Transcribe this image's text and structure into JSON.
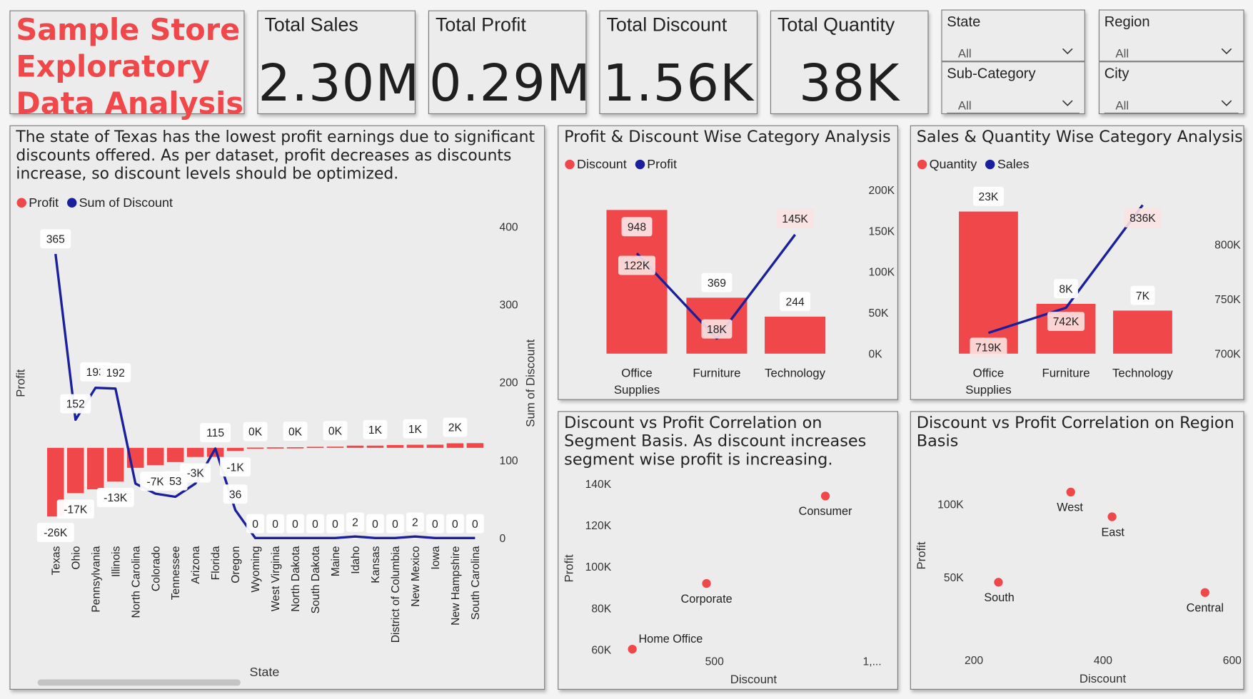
{
  "title": {
    "line1": "Sample Store",
    "line2": "Exploratory",
    "line3": "Data Analysis"
  },
  "kpis": [
    {
      "label": "Total Sales",
      "value": "2.30M"
    },
    {
      "label": "Total Profit",
      "value": "0.29M"
    },
    {
      "label": "Total Discount",
      "value": "1.56K"
    },
    {
      "label": "Total Quantity",
      "value": "38K"
    }
  ],
  "slicers": [
    {
      "label": "State",
      "value": "All"
    },
    {
      "label": "Region",
      "value": "All"
    },
    {
      "label": "Sub-Category",
      "value": "All"
    },
    {
      "label": "City",
      "value": "All"
    }
  ],
  "colors": {
    "red": "#f0474a",
    "blue": "#1a1f9c",
    "title_red": "#f0474a"
  },
  "chart_data": [
    {
      "type": "bar",
      "title": "The state of Texas has the lowest profit earnings due to significant discounts offered. As per dataset, profit decreases as discounts increase, so discount levels should be optimized.",
      "xlabel": "State",
      "ylabel": "Profit",
      "y2label": "Sum of Discount",
      "y2ticks": [
        "400",
        "300",
        "200",
        "100",
        "0"
      ],
      "y2lim": [
        0,
        400
      ],
      "legend": [
        "Profit",
        "Sum of Discount"
      ],
      "categories": [
        "Texas",
        "Ohio",
        "Pennsylvania",
        "Illinois",
        "North Carolina",
        "Colorado",
        "Tennessee",
        "Arizona",
        "Florida",
        "Oregon",
        "Wyoming",
        "West Virginia",
        "North Dakota",
        "South Dakota",
        "Maine",
        "Idaho",
        "Kansas",
        "District of Columbia",
        "New Mexico",
        "Iowa",
        "New Hampshire",
        "South Carolina"
      ],
      "series": [
        {
          "name": "Profit",
          "type": "bar",
          "values": [
            -25729,
            -16971,
            -15560,
            -12608,
            -7491,
            -6528,
            -5342,
            -3428,
            -3399,
            -1191,
            100,
            186,
            230,
            395,
            454,
            827,
            836,
            1060,
            1157,
            1184,
            1707,
            1770
          ],
          "labels": [
            "-26K",
            "-17K",
            "",
            "-13K",
            "",
            "-7K",
            "",
            "-3K",
            "",
            "-1K",
            "0K",
            "",
            "0K",
            "",
            "0K",
            "",
            "1K",
            "",
            "1K",
            "",
            "2K",
            ""
          ]
        },
        {
          "name": "Sum of Discount",
          "type": "line",
          "values": [
            365,
            152,
            193,
            192,
            70,
            57,
            53,
            70,
            115,
            36,
            0,
            0,
            0,
            0,
            0,
            2,
            0,
            0,
            2,
            0,
            0,
            0
          ],
          "labels": [
            "365",
            "152",
            "193",
            "192",
            "",
            "",
            "53",
            "",
            "115",
            "36",
            "0",
            "0",
            "0",
            "0",
            "0",
            "2",
            "0",
            "0",
            "2",
            "0",
            "0",
            "0"
          ]
        }
      ]
    },
    {
      "type": "bar",
      "title": "Profit & Discount Wise Category Analysis",
      "legend": [
        "Discount",
        "Profit"
      ],
      "categories": [
        "Office Supplies",
        "Furniture",
        "Technology"
      ],
      "y2ticks": [
        "200K",
        "150K",
        "100K",
        "50K",
        "0K"
      ],
      "y2lim": [
        0,
        200000
      ],
      "series": [
        {
          "name": "Discount",
          "type": "bar",
          "values": [
            948,
            369,
            244
          ],
          "labels": [
            "948",
            "369",
            "244"
          ]
        },
        {
          "name": "Profit",
          "type": "line",
          "values": [
            122491,
            18451,
            145455
          ],
          "labels": [
            "122K",
            "18K",
            "145K"
          ]
        }
      ]
    },
    {
      "type": "bar",
      "title": "Sales & Quantity Wise Category Analysis",
      "legend": [
        "Quantity",
        "Sales"
      ],
      "categories": [
        "Office Supplies",
        "Furniture",
        "Technology"
      ],
      "y2ticks": [
        "800K",
        "750K",
        "700K"
      ],
      "y2lim": [
        700000,
        850000
      ],
      "series": [
        {
          "name": "Quantity",
          "type": "bar",
          "values": [
            22906,
            8028,
            6939
          ],
          "labels": [
            "23K",
            "8K",
            "7K"
          ]
        },
        {
          "name": "Sales",
          "type": "line",
          "values": [
            719047,
            742000,
            836154
          ],
          "labels": [
            "719K",
            "742K",
            "836K"
          ]
        }
      ]
    },
    {
      "type": "scatter",
      "title": "Discount vs Profit Correlation on Segment Basis. As discount increases segment wise profit is increasing.",
      "xlabel": "Discount",
      "ylabel": "Profit",
      "xticks": [
        "500",
        "1,..."
      ],
      "yticks": [
        "140K",
        "120K",
        "100K",
        "80K",
        "60K"
      ],
      "xlim": [
        170,
        1000
      ],
      "ylim": [
        60000,
        140000
      ],
      "points": [
        {
          "label": "Consumer",
          "x": 820,
          "y": 134119
        },
        {
          "label": "Corporate",
          "x": 477,
          "y": 91979
        },
        {
          "label": "Home Office",
          "x": 263,
          "y": 60299
        }
      ]
    },
    {
      "type": "scatter",
      "title": "Discount vs Profit Correlation on Region Basis",
      "xlabel": "Discount",
      "ylabel": "Profit",
      "xticks": [
        "200",
        "400",
        "600"
      ],
      "yticks": [
        "100K",
        "50K"
      ],
      "xlim": [
        100,
        600
      ],
      "ylim": [
        0,
        125000
      ],
      "points": [
        {
          "label": "West",
          "x": 350,
          "y": 108418
        },
        {
          "label": "East",
          "x": 414,
          "y": 91523
        },
        {
          "label": "South",
          "x": 238,
          "y": 46749
        },
        {
          "label": "Central",
          "x": 558,
          "y": 39706
        }
      ]
    }
  ]
}
